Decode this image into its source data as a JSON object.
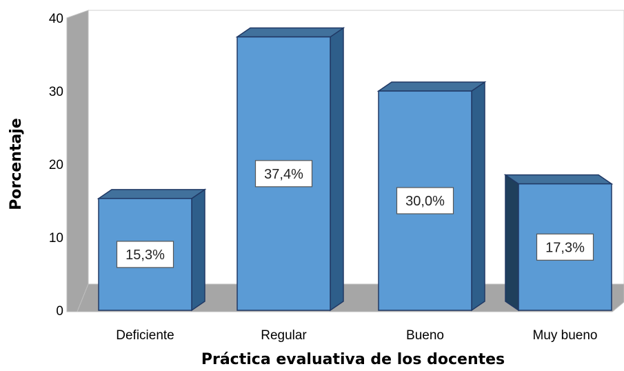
{
  "chart_data": {
    "type": "bar",
    "style": "3d-column",
    "categories": [
      "Deficiente",
      "Regular",
      "Bueno",
      "Muy bueno"
    ],
    "values": [
      15.3,
      37.4,
      30.0,
      17.3
    ],
    "data_labels": [
      "15,3%",
      "37,4%",
      "30,0%",
      "17,3%"
    ],
    "xlabel": "Práctica evaluativa de los docentes",
    "ylabel": "Porcentaje",
    "ylim": [
      0,
      40
    ],
    "yticks": [
      "0",
      "10",
      "20",
      "30",
      "40"
    ],
    "grid": false,
    "legend": "none",
    "colors": {
      "bar_front": "#5B9BD5",
      "bar_top": "#41719C",
      "bar_side": "#2E5E8A",
      "bar_side_dark": "#1F3F5C",
      "bar_outline": "#203864",
      "back_wall": "#FFFFFF",
      "side_wall": "#A6A6A6",
      "floor": "#A6A6A6"
    }
  }
}
